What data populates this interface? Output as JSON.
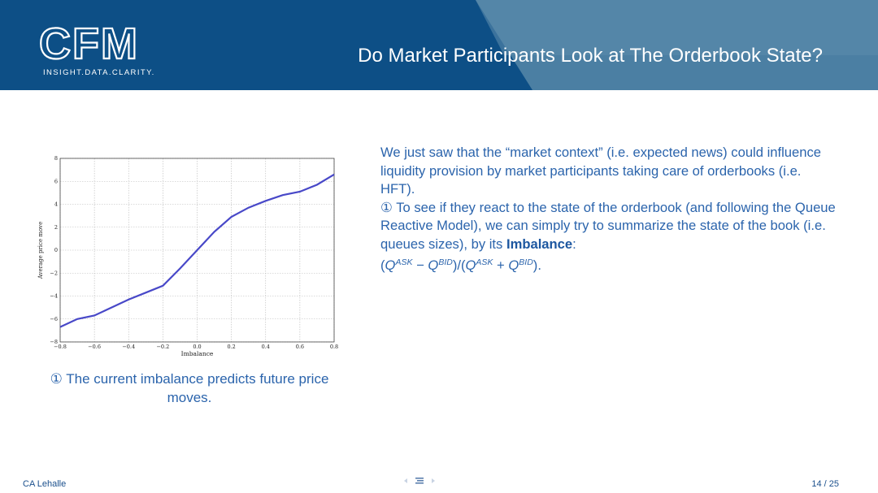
{
  "header": {
    "logo_text": "CFM",
    "logo_tagline": "INSIGHT.DATA.CLARITY.",
    "title": "Do Market Participants Look at The Orderbook State?"
  },
  "colors": {
    "header_bg": "#0d4f86",
    "header_band": "#4b7fa3",
    "text": "#2b64ac",
    "line": "#4848c8"
  },
  "chart_data": {
    "type": "line",
    "xlabel": "Imbalance",
    "ylabel": "Average price move",
    "xlim": [
      -0.8,
      0.8
    ],
    "ylim": [
      -8,
      8
    ],
    "x_ticks": [
      "−0.8",
      "−0.6",
      "−0.4",
      "−0.2",
      "0.0",
      "0.2",
      "0.4",
      "0.6",
      "0.8"
    ],
    "y_ticks": [
      "8",
      "6",
      "4",
      "2",
      "0",
      "−2",
      "−4",
      "−6",
      "−8"
    ],
    "grid": true,
    "series": [
      {
        "x": [
          -0.8,
          -0.7,
          -0.6,
          -0.5,
          -0.4,
          -0.3,
          -0.2,
          -0.1,
          0.0,
          0.1,
          0.2,
          0.3,
          0.4,
          0.5,
          0.6,
          0.7,
          0.8
        ],
        "y": [
          -6.7,
          -6.0,
          -5.7,
          -5.0,
          -4.3,
          -3.7,
          -3.1,
          -1.6,
          0.0,
          1.6,
          2.9,
          3.7,
          4.3,
          4.8,
          5.1,
          5.7,
          6.6
        ]
      }
    ]
  },
  "caption": {
    "marker": "①",
    "text": "The current imbalance predicts future price moves."
  },
  "body": {
    "para1": "We just saw that the “market context” (i.e. expected news) could influence liquidity provision by market participants taking care of orderbooks (i.e. HFT).",
    "marker": "①",
    "para2": "To see if they react to the state of the orderbook (and following the Queue Reactive Model), we can simply try to summarize the state of the book (i.e. queues sizes), by its",
    "bold": "Imbalance",
    "colon": ":",
    "formula": {
      "open": "(",
      "q": "Q",
      "ask": "ASK",
      "bid": "BID",
      "minus": " − ",
      "slash": ")/(",
      "plus": " + ",
      "close": ")."
    }
  },
  "footer": {
    "author": "CA Lehalle",
    "page": "14 / 25"
  }
}
